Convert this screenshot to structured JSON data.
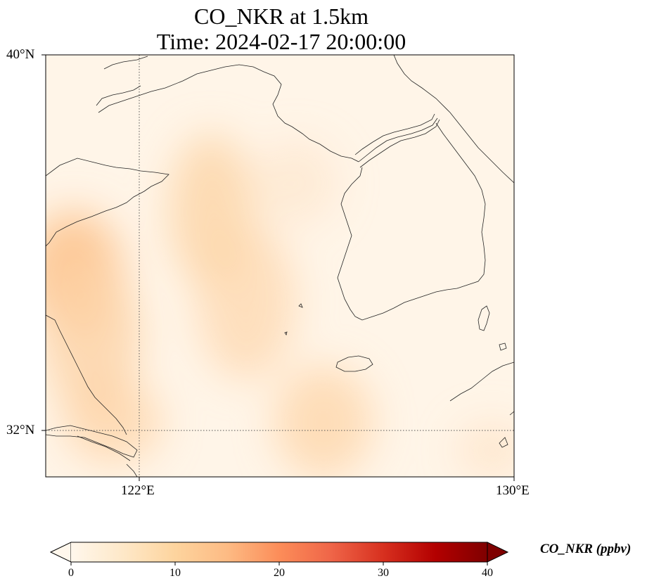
{
  "title": {
    "line1": "CO_NKR at 1.5km",
    "line2": "Time: 2024-02-17 20:00:00"
  },
  "axes": {
    "lat_ticks": [
      "40°N",
      "32°N"
    ],
    "lon_ticks": [
      "122°E",
      "130°E"
    ],
    "lon_range": [
      120,
      130
    ],
    "lat_range": [
      31,
      40
    ],
    "gridlines": "dotted at 122°E and 32°N"
  },
  "colorbar": {
    "label": "CO_NKR (ppbv)",
    "ticks": [
      "0",
      "10",
      "20",
      "30",
      "40"
    ],
    "range": [
      0,
      40
    ],
    "colormap": "OrRd",
    "extend": "both"
  },
  "colors": {
    "cmap_stops": [
      "#fff7ec",
      "#fee8c8",
      "#fdd49e",
      "#fdbb84",
      "#fc8d59",
      "#ef6548",
      "#d7301f",
      "#b30000",
      "#7f0000"
    ]
  }
}
